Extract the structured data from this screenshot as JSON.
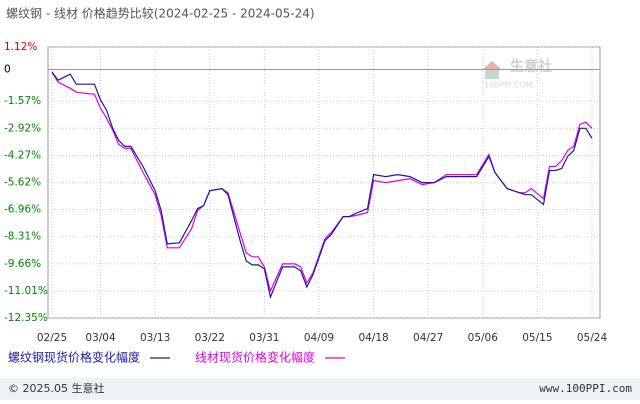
{
  "chart_data": {
    "type": "line",
    "title": "螺纹钢 - 线材 价格趋势比较(2024-02-25 - 2024-05-24)",
    "x": [
      "02/25",
      "02/26",
      "02/28",
      "02/29",
      "03/03",
      "03/04",
      "03/05",
      "03/06",
      "03/07",
      "03/08",
      "03/09",
      "03/11",
      "03/13",
      "03/14",
      "03/15",
      "03/17",
      "03/19",
      "03/20",
      "03/21",
      "03/22",
      "03/24",
      "03/25",
      "03/27",
      "03/28",
      "03/29",
      "03/30",
      "03/31",
      "04/01",
      "04/03",
      "04/05",
      "04/06",
      "04/07",
      "04/08",
      "04/10",
      "04/11",
      "04/13",
      "04/14",
      "04/15",
      "04/17",
      "04/18",
      "04/20",
      "04/22",
      "04/24",
      "04/26",
      "04/28",
      "04/30",
      "05/02",
      "05/03",
      "05/05",
      "05/07",
      "05/08",
      "05/10",
      "05/12",
      "05/13",
      "05/14",
      "05/16",
      "05/17",
      "05/18",
      "05/19",
      "05/20",
      "05/21",
      "05/22",
      "05/23",
      "05/24"
    ],
    "series": [
      {
        "name": "螺纹钢现货价格变化幅度",
        "color": "#1a1aa6",
        "values": [
          -0.13,
          -0.53,
          -0.23,
          -0.73,
          -0.73,
          -1.52,
          -2.02,
          -2.92,
          -3.52,
          -3.82,
          -3.82,
          -4.82,
          -6.02,
          -7.01,
          -8.66,
          -8.61,
          -7.51,
          -6.91,
          -6.76,
          -6.02,
          -5.92,
          -6.22,
          -8.51,
          -9.51,
          -9.71,
          -9.71,
          -9.91,
          -11.31,
          -9.81,
          -9.81,
          -10.01,
          -10.81,
          -10.21,
          -8.51,
          -8.21,
          -7.31,
          -7.31,
          -7.16,
          -6.91,
          -5.22,
          -5.32,
          -5.22,
          -5.32,
          -5.62,
          -5.62,
          -5.32,
          -5.32,
          -5.32,
          -5.32,
          -4.32,
          -5.12,
          -5.92,
          -6.12,
          -6.22,
          -6.22,
          -6.71,
          -5.02,
          -5.02,
          -4.92,
          -4.32,
          -4.02,
          -2.92,
          -2.92,
          -3.42
        ]
      },
      {
        "name": "线材现货价格变化幅度",
        "color": "#e000e0",
        "values": [
          -0.13,
          -0.63,
          -0.93,
          -1.13,
          -1.23,
          -1.92,
          -2.42,
          -3.02,
          -3.72,
          -3.92,
          -3.92,
          -5.12,
          -6.22,
          -7.26,
          -8.86,
          -8.86,
          -7.91,
          -7.01,
          -6.76,
          -6.02,
          -5.92,
          -6.12,
          -8.11,
          -9.11,
          -9.31,
          -9.31,
          -9.81,
          -11.01,
          -9.66,
          -9.66,
          -9.81,
          -10.61,
          -10.11,
          -8.41,
          -8.11,
          -7.31,
          -7.31,
          -7.26,
          -7.11,
          -5.52,
          -5.62,
          -5.52,
          -5.42,
          -5.72,
          -5.62,
          -5.22,
          -5.22,
          -5.22,
          -5.22,
          -4.22,
          -5.12,
          -5.92,
          -6.12,
          -6.12,
          -5.92,
          -6.42,
          -4.82,
          -4.82,
          -4.52,
          -4.02,
          -3.82,
          -2.72,
          -2.62,
          -2.92
        ]
      }
    ],
    "xticks": [
      "02/25",
      "03/04",
      "03/13",
      "03/22",
      "03/31",
      "04/09",
      "04/18",
      "04/27",
      "05/06",
      "05/15",
      "05/24"
    ],
    "ylim": [
      -12.35,
      1.12
    ],
    "yticks": [
      {
        "value": 1.12,
        "label": "1.12%"
      },
      0,
      {
        "value": -1.57,
        "label": "-1.57%"
      },
      {
        "value": -2.92,
        "label": "-2.92%"
      },
      {
        "value": -4.27,
        "label": "-4.27%"
      },
      {
        "value": -5.62,
        "label": "-5.62%"
      },
      {
        "value": -6.96,
        "label": "-6.96%"
      },
      {
        "value": -8.31,
        "label": "-8.31%"
      },
      {
        "value": -9.66,
        "label": "-9.66%"
      },
      {
        "value": -11.01,
        "label": "-11.01%"
      },
      {
        "value": -12.35,
        "label": "-12.35%"
      }
    ],
    "grid": true,
    "watermark": {
      "name": "生意社",
      "site": "100PPI.COM"
    },
    "footer": {
      "copyright": "© 2025.05 生意社",
      "url": "www.100PPI.com"
    }
  }
}
